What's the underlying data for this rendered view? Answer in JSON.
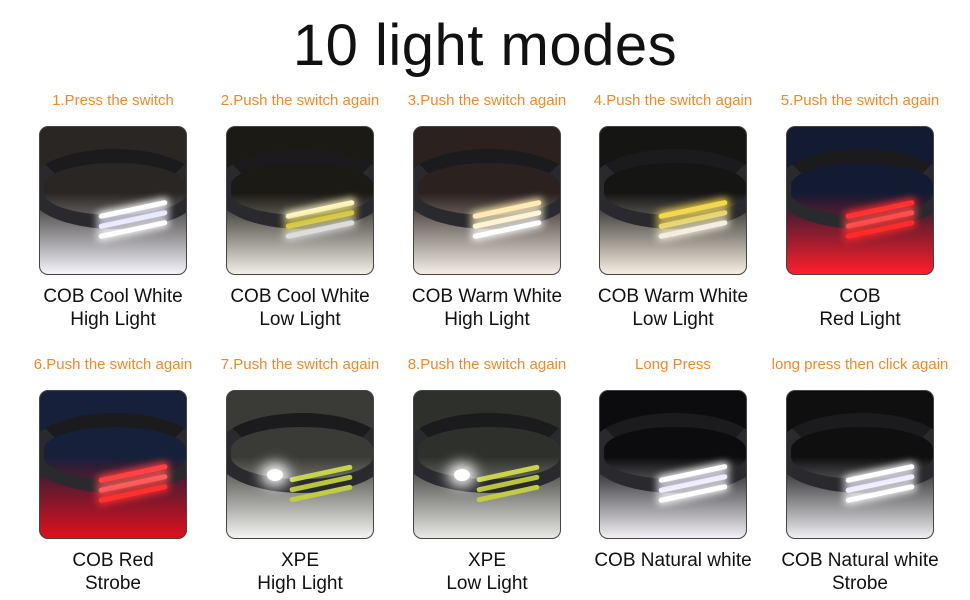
{
  "title": "10 light modes",
  "modes": [
    {
      "step": "1.Press the switch",
      "line1": "COB Cool White",
      "line2": "High Light",
      "bg": "#2a2623",
      "glow": "#f4f4fb",
      "strips": [
        "#ffffff",
        "#e8e8ff",
        "#ffffff"
      ],
      "spot": false
    },
    {
      "step": "2.Push the switch again",
      "line1": "COB Cool White",
      "line2": "Low Light",
      "bg": "#1c1a14",
      "glow": "#f2efe6",
      "strips": [
        "#fff7c8",
        "#d6c83a",
        "#ddd"
      ],
      "spot": false
    },
    {
      "step": "3.Push the switch again",
      "line1": "COB Warm White",
      "line2": "High Light",
      "bg": "#2b2220",
      "glow": "#f6efe6",
      "strips": [
        "#ffe9b0",
        "#fff3d0",
        "#ffffff"
      ],
      "spot": false
    },
    {
      "step": "4.Push the switch again",
      "line1": "COB Warm White",
      "line2": "Low Light",
      "bg": "#151514",
      "glow": "#f7efe2",
      "strips": [
        "#f5d84a",
        "#e9d36a",
        "#f4eee0"
      ],
      "spot": false
    },
    {
      "step": "5.Push the switch again",
      "line1": "COB",
      "line2": "Red Light",
      "bg": "#131b33",
      "glow": "#ff1f2a",
      "strips": [
        "#ff3030",
        "#ff5050",
        "#ff2a2a"
      ],
      "spot": false
    },
    {
      "step": "6.Push the switch again",
      "line1": "COB Red",
      "line2": "Strobe",
      "bg": "#17203a",
      "glow": "#e0101c",
      "strips": [
        "#ff4040",
        "#ff6060",
        "#ff3030"
      ],
      "spot": false
    },
    {
      "step": "7.Push the switch again",
      "line1": "XPE",
      "line2": "High Light",
      "bg": "#3a3b36",
      "glow": "#f4f4f2",
      "strips": [
        "#c8d44a",
        "#b9c440",
        "#c0cc45"
      ],
      "spot": true
    },
    {
      "step": "8.Push the switch again",
      "line1": "XPE",
      "line2": "Low Light",
      "bg": "#2e302c",
      "glow": "#e9e9e6",
      "strips": [
        "#c8d44a",
        "#b9c440",
        "#c0cc45"
      ],
      "spot": true
    },
    {
      "step": "Long Press",
      "line1": "COB Natural white",
      "line2": "",
      "bg": "#0c0c0e",
      "glow": "#f2f0f6",
      "strips": [
        "#ffffff",
        "#f0ecff",
        "#ffffff"
      ],
      "spot": false
    },
    {
      "step": "long press then click again",
      "line1": "COB Natural white",
      "line2": "Strobe",
      "bg": "#0f0f10",
      "glow": "#efeef2",
      "strips": [
        "#ffffff",
        "#f0ecff",
        "#ffffff"
      ],
      "spot": false
    }
  ]
}
